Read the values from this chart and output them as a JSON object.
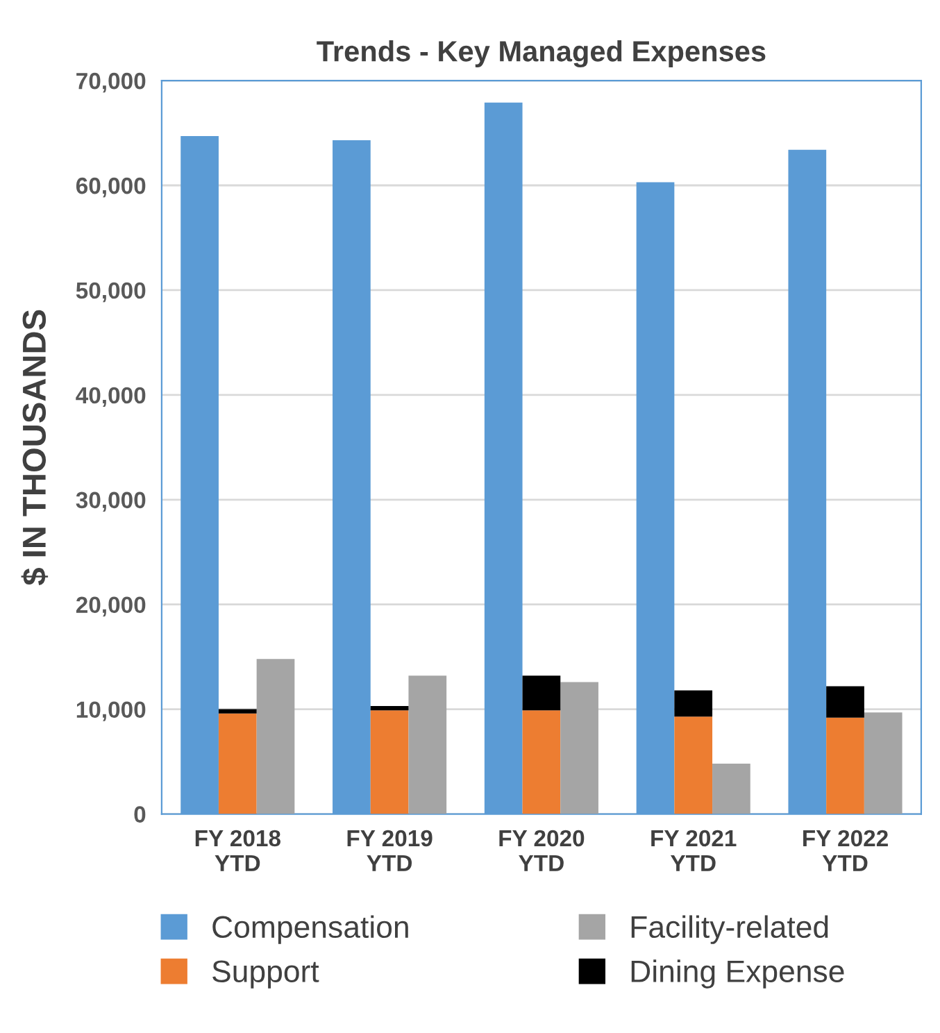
{
  "chart_data": {
    "type": "bar",
    "stacked": true,
    "title": "Trends - Key Managed Expenses",
    "ylabel": "$ IN THOUSANDS",
    "categories": [
      null,
      "FY 2018\nYTD",
      null,
      null,
      null,
      "FY 2019\nYTD",
      null,
      null,
      null,
      "FY 2020\nYTD",
      null,
      null,
      null,
      "FY 2021\nYTD",
      null,
      null,
      null,
      "FY 2022\nYTD",
      null
    ],
    "series": [
      {
        "name": "Compensation",
        "color": "#5b9bd5",
        "values": [
          64700,
          null,
          null,
          null,
          64300,
          null,
          null,
          null,
          67900,
          null,
          null,
          null,
          60300,
          null,
          null,
          null,
          63400,
          null,
          null
        ]
      },
      {
        "name": "Support",
        "color": "#ed7d31",
        "values": [
          null,
          9600,
          null,
          null,
          null,
          9900,
          null,
          null,
          null,
          9900,
          null,
          null,
          null,
          9300,
          null,
          null,
          null,
          9200,
          null
        ]
      },
      {
        "name": "Facility-related",
        "color": "#a5a5a5",
        "values": [
          null,
          null,
          14800,
          null,
          null,
          null,
          13200,
          null,
          null,
          null,
          12600,
          null,
          null,
          null,
          4800,
          null,
          null,
          null,
          9700
        ]
      },
      {
        "name": "Dining Expense",
        "color": "#000000",
        "values": [
          null,
          400,
          null,
          null,
          null,
          400,
          null,
          null,
          null,
          3300,
          null,
          null,
          null,
          2500,
          null,
          null,
          null,
          3000,
          null
        ]
      }
    ],
    "ylim": [
      0,
      70000
    ],
    "yticks": [
      {
        "value": 0,
        "label": "0"
      },
      {
        "value": 10000,
        "label": "10,000"
      },
      {
        "value": 20000,
        "label": "20,000"
      },
      {
        "value": 30000,
        "label": "30,000"
      },
      {
        "value": 40000,
        "label": "40,000"
      },
      {
        "value": 50000,
        "label": "50,000"
      },
      {
        "value": 60000,
        "label": "60,000"
      },
      {
        "value": 70000,
        "label": "70,000"
      }
    ],
    "grid": "y",
    "legend": "bottom"
  }
}
